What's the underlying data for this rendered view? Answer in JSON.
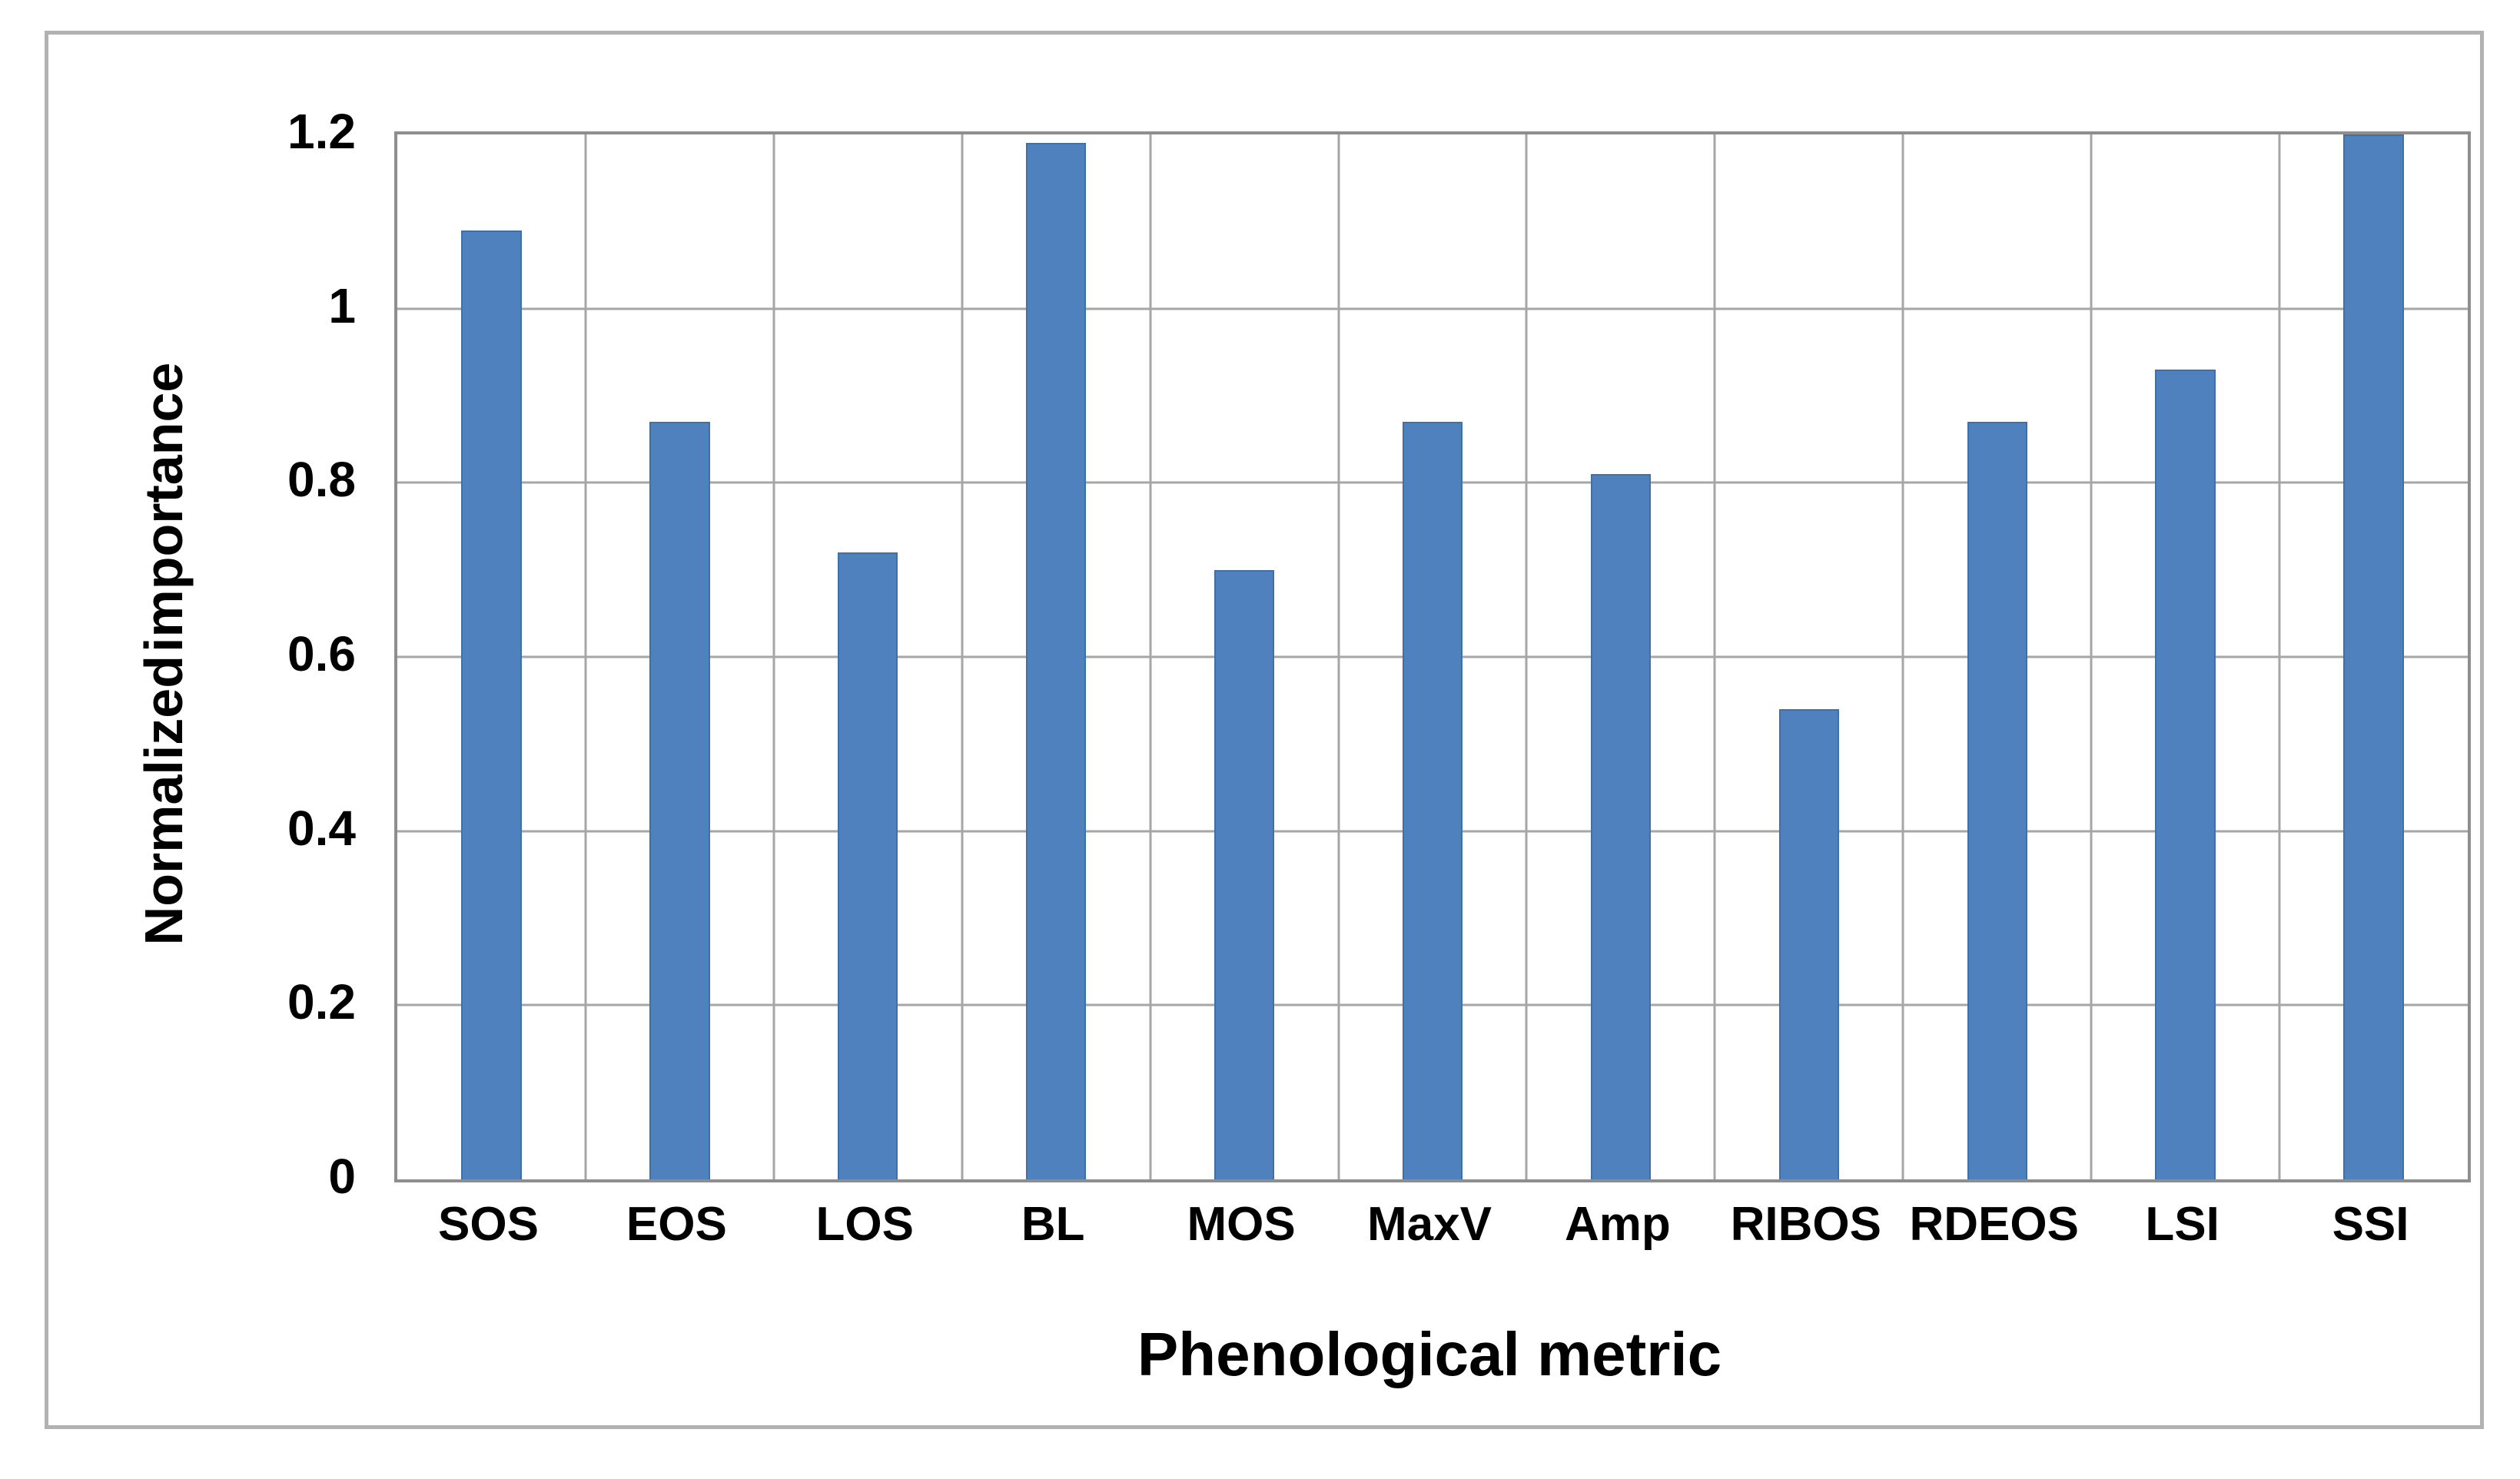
{
  "figure": {
    "description": "Bar chart of normalized importance per phenological metric"
  },
  "chart_data": {
    "type": "bar",
    "title": "",
    "categories": [
      "SOS",
      "EOS",
      "LOS",
      "BL",
      "MOS",
      "MaxV",
      "Amp",
      "RIBOS",
      "RDEOS",
      "LSI",
      "SSI"
    ],
    "values": [
      1.09,
      0.87,
      0.72,
      1.19,
      0.7,
      0.87,
      0.81,
      0.54,
      0.87,
      0.93,
      1.2
    ],
    "xlabel": "Phenological metric",
    "ylabel": "Normalized importance",
    "ylim": [
      0,
      1.2
    ],
    "ytick_labels": [
      "1.2",
      "1",
      "0.8",
      "0.6",
      "0.4",
      "0.2",
      "0"
    ],
    "grid": true,
    "legend": false,
    "bar_color": "#4e81bd"
  },
  "colors": {
    "bar_fill": "#4e81bd",
    "bar_edge": "#3f71a8",
    "gridline": "#a6a6a6",
    "plot_border": "#8e8e8e",
    "frame_border": "#b2b2b2",
    "text": "#000000",
    "background": "#ffffff"
  }
}
